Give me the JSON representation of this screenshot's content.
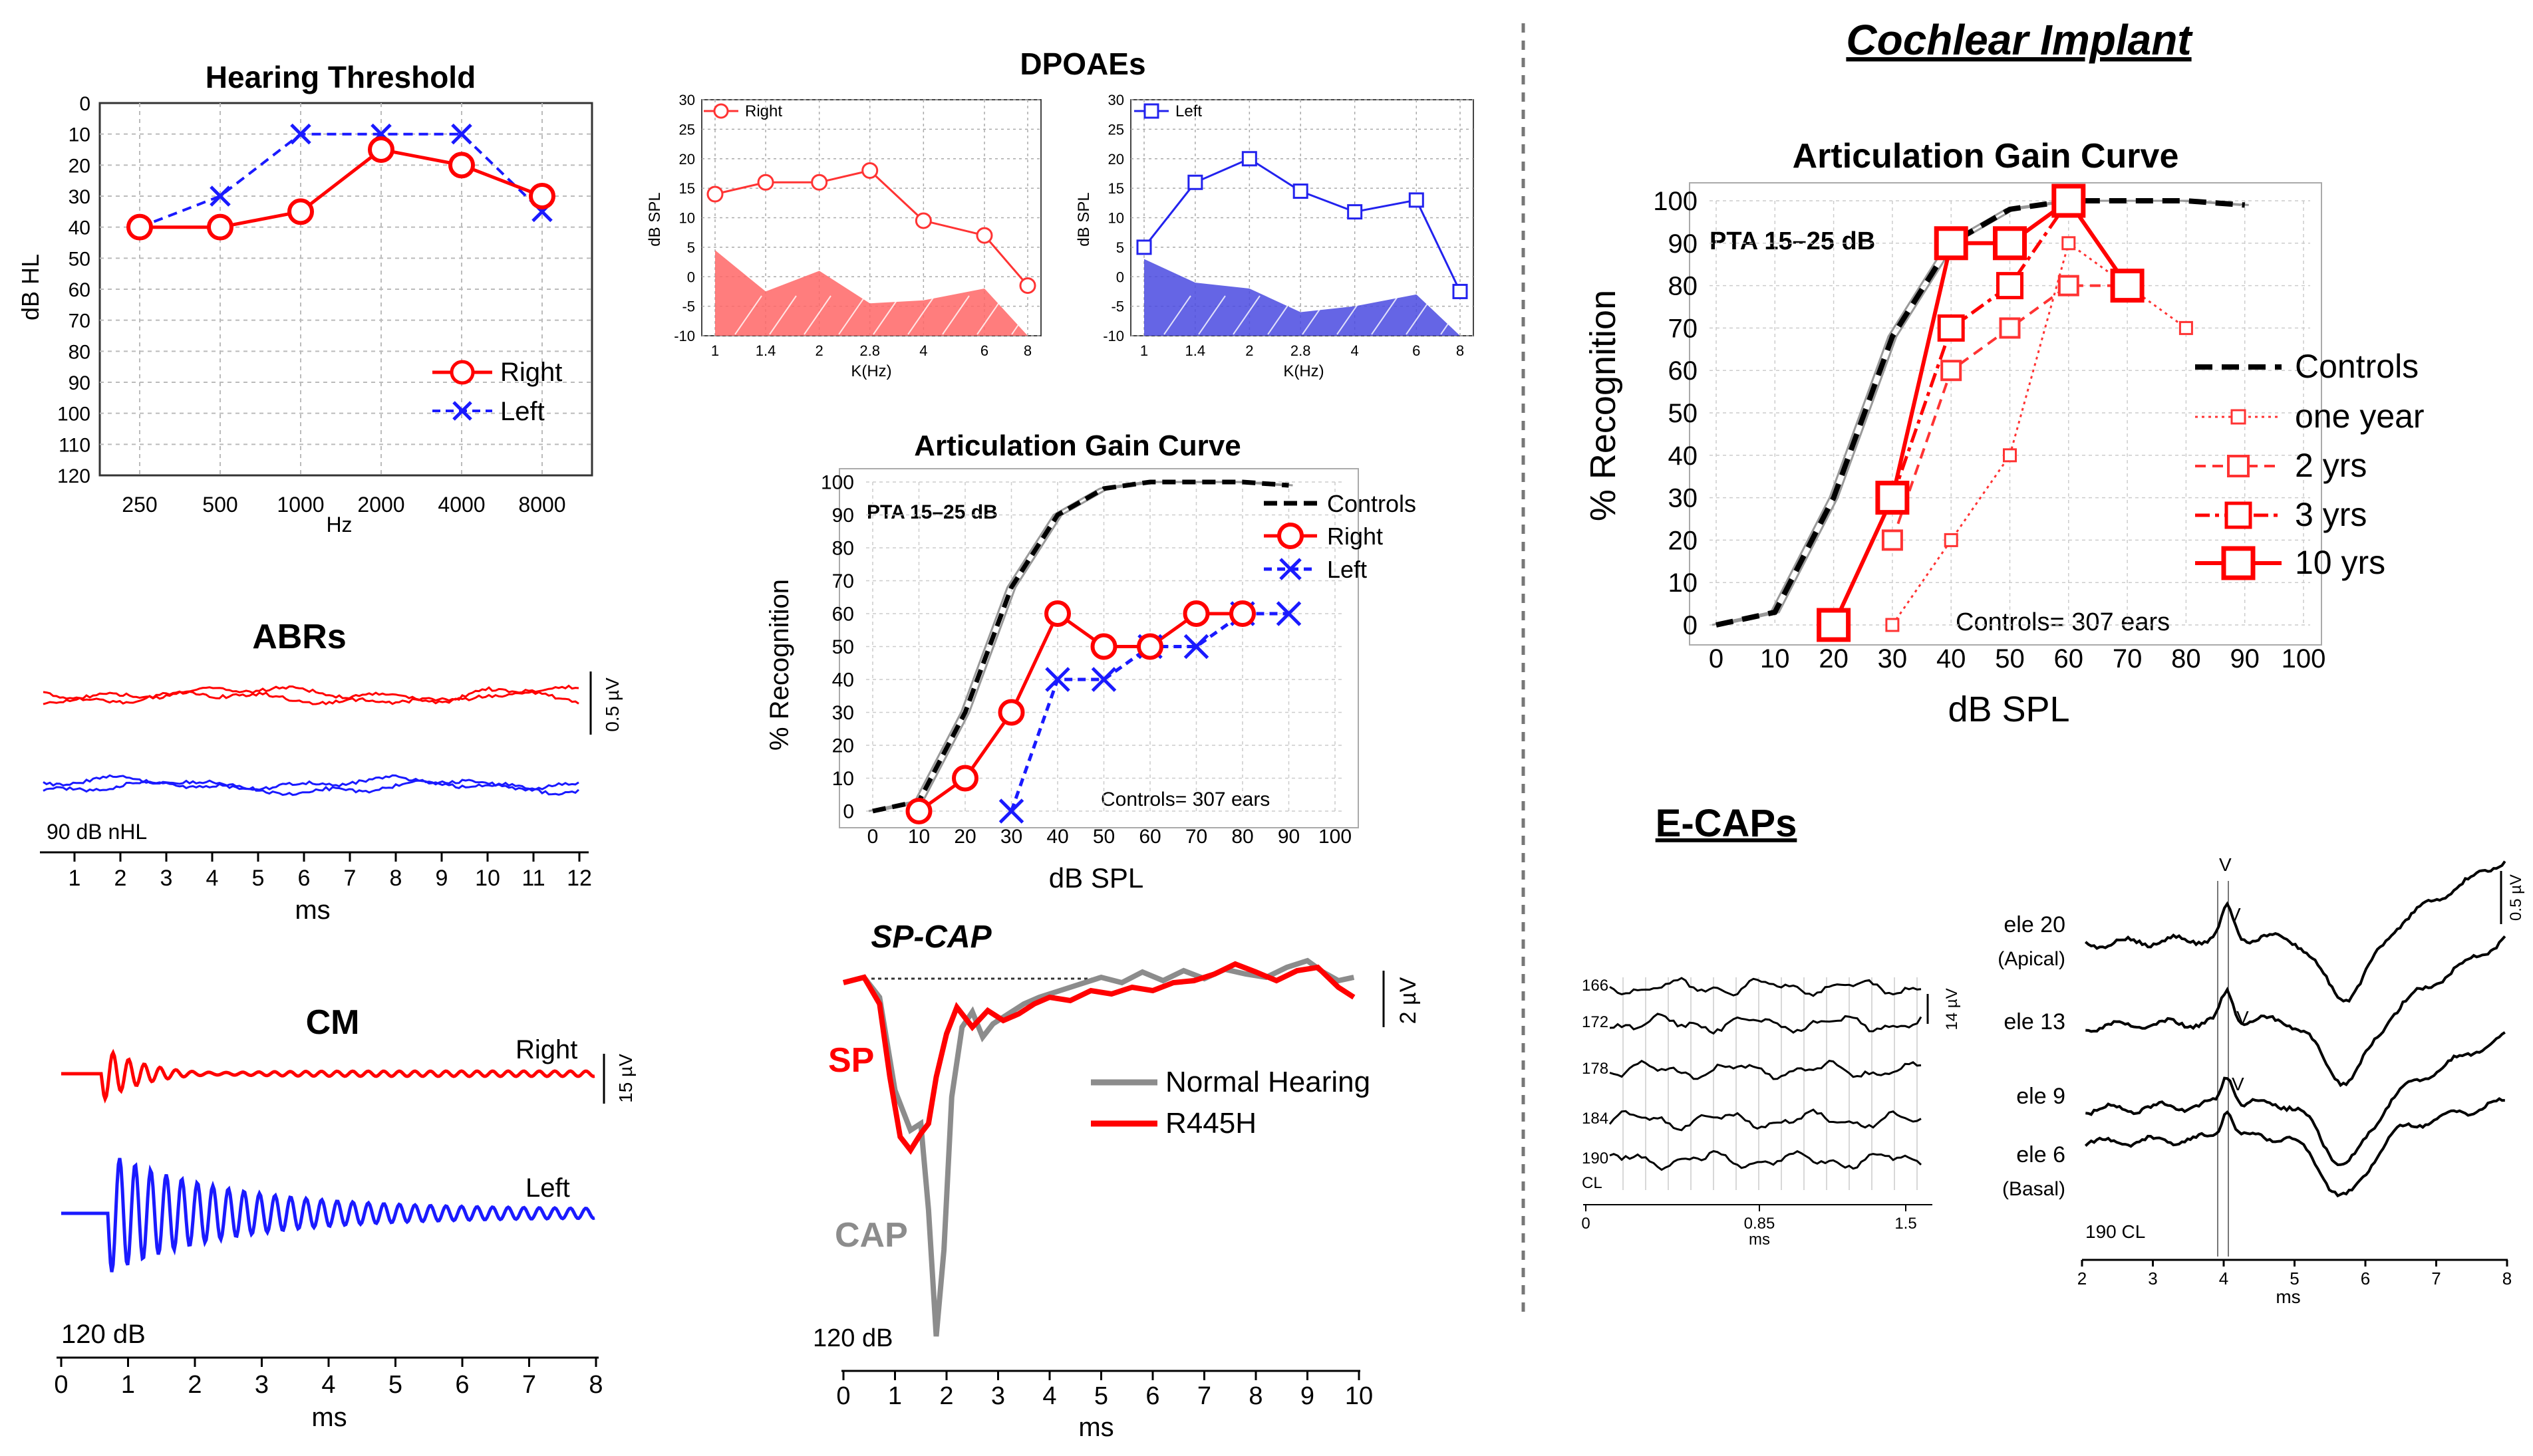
{
  "chart_data": [
    {
      "id": "hearing",
      "type": "line",
      "title": "Hearing Threshold",
      "xlabel": "Hz",
      "ylabel": "dB HL",
      "categories": [
        "250",
        "500",
        "1000",
        "2000",
        "4000",
        "8000"
      ],
      "ylim": [
        0,
        120
      ],
      "yticks": [
        "0",
        "10",
        "20",
        "30",
        "40",
        "50",
        "60",
        "70",
        "80",
        "90",
        "100",
        "110",
        "120"
      ],
      "series": [
        {
          "name": "Right",
          "color": "#ff0000",
          "values": [
            40,
            40,
            35,
            15,
            20,
            30
          ]
        },
        {
          "name": "Left",
          "color": "#1a1aff",
          "values": [
            40,
            30,
            10,
            10,
            10,
            35
          ]
        }
      ]
    },
    {
      "id": "dpoae",
      "type": "area",
      "title": "DPOAEs",
      "xlabel": "K(Hz)",
      "ylabel": "dB SPL",
      "x_ticks": [
        "1",
        "1.4",
        "2",
        "2.8",
        "4",
        "6",
        "8"
      ],
      "ylim": [
        -10,
        30
      ],
      "yticks": [
        "-10",
        "-5",
        "0",
        "5",
        "10",
        "15",
        "20",
        "25",
        "30"
      ],
      "panels": [
        {
          "name": "Right",
          "color": "#ff3333",
          "fill": "#ff6666",
          "values": [
            14,
            16,
            16,
            18,
            9.5,
            7,
            -1.5
          ],
          "noise": [
            4.5,
            -2.5,
            1,
            -4.5,
            -4,
            -2,
            -10
          ]
        },
        {
          "name": "Left",
          "color": "#2222ee",
          "fill": "#4a4ae0",
          "values": [
            5,
            16,
            20,
            14.5,
            11,
            13,
            -2.5
          ],
          "noise": [
            3,
            -1,
            -2,
            -6,
            -5,
            -3,
            -10
          ]
        }
      ]
    },
    {
      "id": "artic1",
      "type": "line",
      "title": "Articulation Gain Curve",
      "subtitle": "PTA 15–25 dB",
      "xlabel": "dB SPL",
      "ylabel": "% Recognition",
      "annotation": "Controls= 307 ears",
      "xlim": [
        0,
        100
      ],
      "ylim": [
        0,
        100
      ],
      "ticks": [
        "0",
        "10",
        "20",
        "30",
        "40",
        "50",
        "60",
        "70",
        "80",
        "90",
        "100"
      ],
      "series": [
        {
          "name": "Controls",
          "color": "#000000",
          "x": [
            0,
            10,
            20,
            30,
            40,
            50,
            60,
            70,
            80,
            90
          ],
          "values": [
            0,
            3,
            30,
            68,
            90,
            98,
            100,
            100,
            100,
            99
          ]
        },
        {
          "name": "Right",
          "color": "#ff0000",
          "x": [
            10,
            20,
            30,
            40,
            50,
            60,
            70,
            80
          ],
          "values": [
            0,
            10,
            30,
            60,
            50,
            50,
            60,
            60
          ]
        },
        {
          "name": "Left",
          "color": "#1a1aff",
          "x": [
            30,
            40,
            50,
            60,
            70,
            80,
            90
          ],
          "values": [
            0,
            40,
            40,
            50,
            50,
            60,
            60
          ]
        }
      ]
    },
    {
      "id": "artic2",
      "type": "line",
      "title": "Articulation Gain Curve",
      "subtitle": "PTA 15–25 dB",
      "xlabel": "dB SPL",
      "ylabel": "% Recognition",
      "annotation": "Controls= 307 ears",
      "xlim": [
        0,
        100
      ],
      "ylim": [
        0,
        100
      ],
      "ticks": [
        "0",
        "10",
        "20",
        "30",
        "40",
        "50",
        "60",
        "70",
        "80",
        "90",
        "100"
      ],
      "series": [
        {
          "name": "Controls",
          "color": "#000000",
          "x": [
            0,
            10,
            20,
            30,
            40,
            50,
            60,
            70,
            80,
            90
          ],
          "values": [
            0,
            3,
            30,
            68,
            90,
            98,
            100,
            100,
            100,
            99
          ]
        },
        {
          "name": "one year",
          "color": "#ff3333",
          "x": [
            30,
            40,
            50,
            60,
            70,
            80
          ],
          "values": [
            0,
            20,
            40,
            90,
            80,
            70
          ]
        },
        {
          "name": "2 yrs",
          "color": "#ff3333",
          "x": [
            30,
            40,
            50,
            60,
            70
          ],
          "values": [
            20,
            60,
            70,
            80,
            80
          ]
        },
        {
          "name": "3 yrs",
          "color": "#ff0000",
          "x": [
            30,
            40,
            50,
            60,
            70
          ],
          "values": [
            30,
            70,
            80,
            100,
            80
          ]
        },
        {
          "name": "10 yrs",
          "color": "#ff0000",
          "x": [
            20,
            30,
            40,
            50,
            60,
            70
          ],
          "values": [
            0,
            30,
            90,
            90,
            100,
            80
          ]
        }
      ]
    },
    {
      "id": "abr",
      "type": "line",
      "title": "ABRs",
      "xlabel": "ms",
      "x_ticks": [
        "1",
        "2",
        "3",
        "4",
        "5",
        "6",
        "7",
        "8",
        "9",
        "10",
        "11",
        "12"
      ],
      "scale": "0.5 µV",
      "level": "90 dB nHL"
    },
    {
      "id": "cm",
      "type": "line",
      "title": "CM",
      "xlabel": "ms",
      "x_ticks": [
        "0",
        "1",
        "2",
        "3",
        "4",
        "5",
        "6",
        "7",
        "8"
      ],
      "scale": "15 µV",
      "level": "120 dB",
      "series": [
        {
          "name": "Right",
          "color": "#ff0000"
        },
        {
          "name": "Left",
          "color": "#1a1aff"
        }
      ]
    },
    {
      "id": "spcap",
      "type": "line",
      "title": "SP-CAP",
      "xlabel": "ms",
      "x_ticks": [
        "0",
        "1",
        "2",
        "3",
        "4",
        "5",
        "6",
        "7",
        "8",
        "9",
        "10"
      ],
      "scale": "2 µV",
      "level": "120 dB",
      "labels": {
        "sp": "SP",
        "cap": "CAP"
      },
      "series": [
        {
          "name": "Normal Hearing",
          "color": "#8c8c8c"
        },
        {
          "name": "R445H",
          "color": "#ff0000"
        }
      ]
    },
    {
      "id": "ecap_left",
      "type": "line",
      "xlabel": "ms",
      "x_ticks": [
        "0",
        "0.85",
        "1.5"
      ],
      "scale": "14 µV",
      "traces": [
        "166",
        "172",
        "178",
        "184",
        "190"
      ],
      "cl_label": "CL"
    },
    {
      "id": "ecap_right",
      "type": "line",
      "xlabel": "ms",
      "x_ticks": [
        "2",
        "3",
        "4",
        "5",
        "6",
        "7",
        "8"
      ],
      "scale": "0.5 µV",
      "cl_label": "190 CL",
      "peak_label": "V",
      "electrodes": [
        {
          "name": "ele 20",
          "sub": "(Apical)"
        },
        {
          "name": "ele 13",
          "sub": ""
        },
        {
          "name": "ele 9",
          "sub": ""
        },
        {
          "name": "ele 6",
          "sub": "(Basal)"
        }
      ]
    }
  ],
  "headings": {
    "implant": "Cochlear Implant",
    "ecaps": "E-CAPs"
  }
}
